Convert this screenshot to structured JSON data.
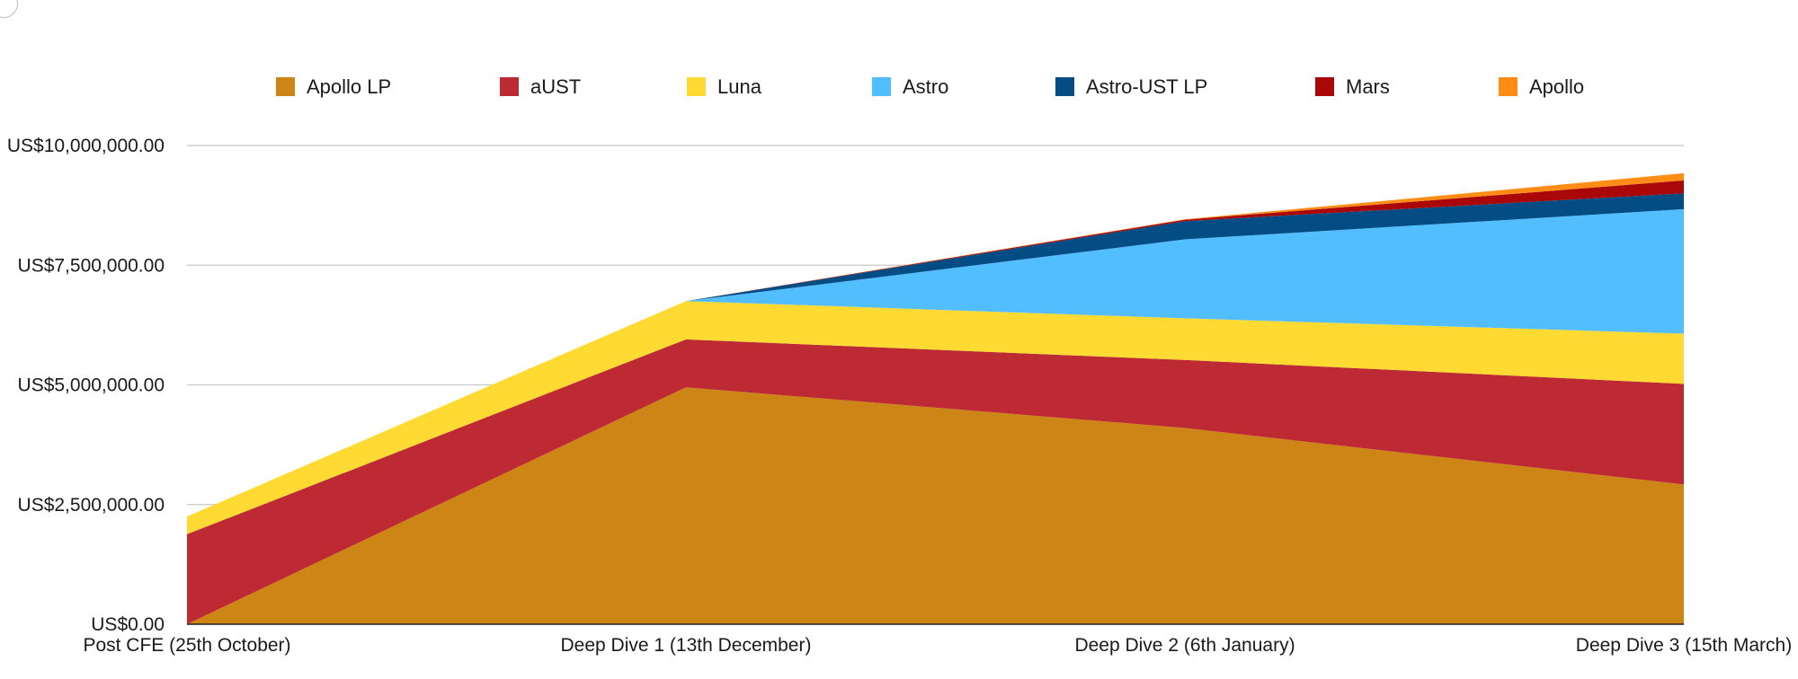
{
  "chart_data": {
    "type": "area",
    "stacked": true,
    "categories": [
      "Post CFE (25th October)",
      "Deep Dive 1 (13th December)",
      "Deep Dive 2 (6th January)",
      "Deep Dive 3 (15th March)"
    ],
    "series": [
      {
        "name": "Apollo LP",
        "color": "#CD8515",
        "values": [
          0,
          4950000,
          4100000,
          2920000
        ]
      },
      {
        "name": "aUST",
        "color": "#BE2A33",
        "values": [
          1880000,
          1000000,
          1420000,
          2100000
        ]
      },
      {
        "name": "Luna",
        "color": "#FFDA33",
        "values": [
          370000,
          800000,
          870000,
          1050000
        ]
      },
      {
        "name": "Astro",
        "color": "#53BEFD",
        "values": [
          0,
          0,
          1650000,
          2600000
        ]
      },
      {
        "name": "Astro-UST LP",
        "color": "#034C84",
        "values": [
          0,
          0,
          380000,
          330000
        ]
      },
      {
        "name": "Mars",
        "color": "#A90708",
        "values": [
          0,
          0,
          30000,
          270000
        ]
      },
      {
        "name": "Apollo",
        "color": "#FF8C15",
        "values": [
          0,
          0,
          10000,
          150000
        ]
      }
    ],
    "y_ticks": [
      "US$0.00",
      "US$2,500,000.00",
      "US$5,000,000.00",
      "US$7,500,000.00",
      "US$10,000,000.00"
    ],
    "ylim": [
      0,
      10000000
    ],
    "y_step": 2500000,
    "grid": true,
    "legend_position": "top"
  }
}
